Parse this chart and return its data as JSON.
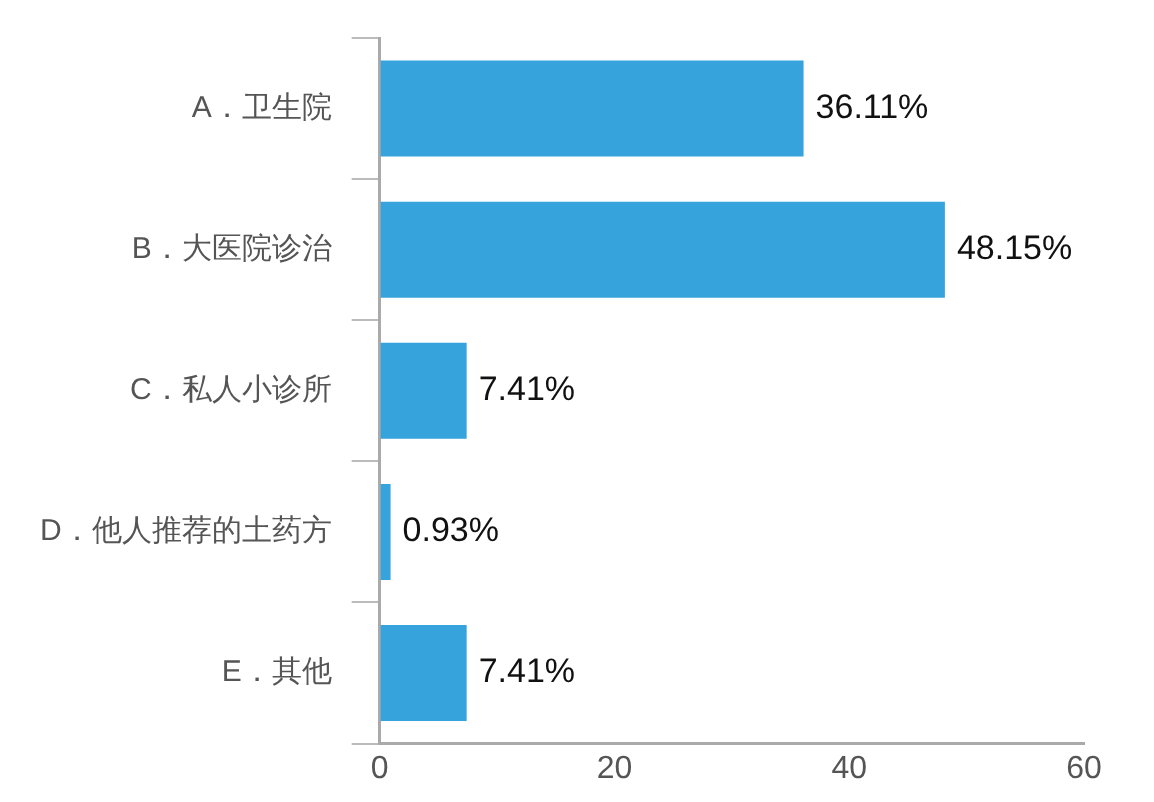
{
  "chart_data": {
    "type": "bar",
    "orientation": "horizontal",
    "categories": [
      "A．卫生院",
      "B．大医院诊治",
      "C．私人小诊所",
      "D．他人推荐的土药方",
      "E．其他"
    ],
    "values": [
      36.11,
      48.15,
      7.41,
      0.93,
      7.41
    ],
    "value_labels": [
      "36.11%",
      "48.15%",
      "7.41%",
      "0.93%",
      "7.41%"
    ],
    "color": "#36a3dc",
    "xlim": [
      0,
      60
    ],
    "xticks": [
      0,
      20,
      40,
      60
    ],
    "grid": false,
    "legend": false
  }
}
